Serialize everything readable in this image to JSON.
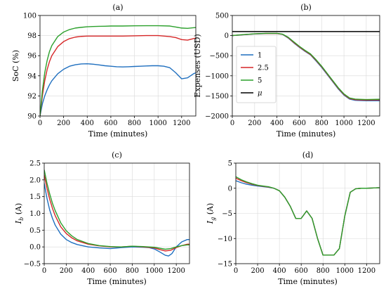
{
  "colors": {
    "s1": "#1f6fbf",
    "s2": "#d62728",
    "s3": "#2ca02c",
    "mu": "#000000",
    "grid": "#d9d9d9"
  },
  "chart_data": [
    {
      "id": "a",
      "type": "line",
      "title": "(a)",
      "xlabel": "Time (minutes)",
      "ylabel": "SoC (%)",
      "xlim": [
        0,
        1320
      ],
      "ylim": [
        90,
        100
      ],
      "xticks": [
        0,
        200,
        400,
        600,
        800,
        1000,
        1200
      ],
      "yticks": [
        90,
        92,
        94,
        96,
        98,
        100
      ],
      "grid": true,
      "series": [
        {
          "color": "s1",
          "x": [
            0,
            20,
            40,
            60,
            80,
            100,
            150,
            200,
            250,
            300,
            350,
            400,
            450,
            500,
            550,
            600,
            650,
            700,
            750,
            800,
            850,
            900,
            950,
            1000,
            1050,
            1100,
            1150,
            1200,
            1250,
            1300,
            1320
          ],
          "y": [
            90,
            91.2,
            92,
            92.6,
            93.1,
            93.5,
            94.2,
            94.65,
            94.95,
            95.1,
            95.18,
            95.2,
            95.15,
            95.08,
            95.0,
            94.95,
            94.9,
            94.88,
            94.9,
            94.93,
            94.95,
            94.98,
            95.0,
            95.0,
            94.95,
            94.8,
            94.3,
            93.7,
            93.8,
            94.2,
            94.3
          ]
        },
        {
          "color": "s2",
          "x": [
            0,
            20,
            40,
            60,
            80,
            100,
            150,
            200,
            250,
            300,
            350,
            400,
            450,
            500,
            550,
            600,
            700,
            800,
            900,
            1000,
            1050,
            1100,
            1150,
            1200,
            1250,
            1300,
            1320
          ],
          "y": [
            90,
            92,
            93.5,
            94.6,
            95.4,
            96.0,
            96.9,
            97.4,
            97.7,
            97.85,
            97.92,
            97.95,
            97.95,
            97.95,
            97.95,
            97.95,
            97.95,
            97.98,
            98.0,
            98.0,
            97.95,
            97.9,
            97.8,
            97.6,
            97.55,
            97.7,
            97.75
          ]
        },
        {
          "color": "s3",
          "x": [
            0,
            20,
            40,
            60,
            80,
            100,
            150,
            200,
            250,
            300,
            350,
            400,
            450,
            500,
            550,
            600,
            700,
            800,
            900,
            1000,
            1100,
            1150,
            1200,
            1250,
            1300,
            1320
          ],
          "y": [
            90,
            92.5,
            94.3,
            95.5,
            96.4,
            97.0,
            97.9,
            98.35,
            98.6,
            98.75,
            98.82,
            98.88,
            98.9,
            98.92,
            98.93,
            98.95,
            98.95,
            98.97,
            98.98,
            98.98,
            98.95,
            98.85,
            98.75,
            98.72,
            98.78,
            98.8
          ]
        }
      ]
    },
    {
      "id": "b",
      "type": "line",
      "title": "(b)",
      "xlabel": "Time (minutes)",
      "ylabel": "Expenses (USD)",
      "xlim": [
        0,
        1320
      ],
      "ylim": [
        -2000,
        500
      ],
      "xticks": [
        0,
        200,
        400,
        600,
        800,
        1000,
        1200
      ],
      "yticks": [
        500,
        0,
        -500,
        -1000,
        -1500,
        -2000
      ],
      "ytick_labels": [
        "500",
        "0",
        "−500",
        "−1000",
        "−1500",
        "−2000"
      ],
      "grid": true,
      "legend": {
        "position": "left-center",
        "entries": [
          "1",
          "2.5",
          "5",
          "μ"
        ]
      },
      "series": [
        {
          "name": "1",
          "color": "s1",
          "x": [
            0,
            50,
            100,
            200,
            300,
            400,
            450,
            500,
            550,
            600,
            650,
            700,
            750,
            800,
            850,
            900,
            950,
            1000,
            1050,
            1100,
            1200,
            1300,
            1320
          ],
          "y": [
            0,
            10,
            20,
            40,
            50,
            50,
            30,
            -60,
            -180,
            -290,
            -390,
            -480,
            -630,
            -790,
            -970,
            -1150,
            -1330,
            -1480,
            -1580,
            -1610,
            -1620,
            -1620,
            -1620
          ]
        },
        {
          "name": "2.5",
          "color": "s2",
          "x": [
            0,
            50,
            100,
            200,
            300,
            400,
            450,
            500,
            550,
            600,
            650,
            700,
            750,
            800,
            850,
            900,
            950,
            1000,
            1050,
            1100,
            1200,
            1300,
            1320
          ],
          "y": [
            0,
            12,
            22,
            42,
            52,
            52,
            32,
            -50,
            -170,
            -280,
            -380,
            -470,
            -615,
            -775,
            -955,
            -1135,
            -1315,
            -1465,
            -1565,
            -1595,
            -1605,
            -1600,
            -1600
          ]
        },
        {
          "name": "5",
          "color": "s3",
          "x": [
            0,
            50,
            100,
            200,
            300,
            400,
            450,
            500,
            550,
            600,
            650,
            700,
            750,
            800,
            850,
            900,
            950,
            1000,
            1050,
            1100,
            1200,
            1300,
            1320
          ],
          "y": [
            0,
            14,
            25,
            45,
            55,
            55,
            35,
            -40,
            -155,
            -265,
            -365,
            -455,
            -600,
            -760,
            -940,
            -1120,
            -1300,
            -1450,
            -1550,
            -1580,
            -1590,
            -1585,
            -1585
          ]
        },
        {
          "name": "μ",
          "color": "mu",
          "x": [
            0,
            1320
          ],
          "y": [
            100,
            100
          ]
        }
      ]
    },
    {
      "id": "c",
      "type": "line",
      "title": "(c)",
      "xlabel": "Time (minutes)",
      "ylabel": "I_b (A)",
      "ylabel_parts": [
        "I",
        "b",
        " (A)"
      ],
      "xlim": [
        0,
        1320
      ],
      "ylim": [
        -0.5,
        2.5
      ],
      "xticks": [
        0,
        200,
        400,
        600,
        800,
        1000,
        1200
      ],
      "yticks": [
        -0.5,
        0.0,
        0.5,
        1.0,
        1.5,
        2.0,
        2.5
      ],
      "ytick_labels": [
        "−0.5",
        "0.0",
        "0.5",
        "1.0",
        "1.5",
        "2.0",
        "2.5"
      ],
      "grid": true,
      "series": [
        {
          "color": "s1",
          "x": [
            0,
            25,
            50,
            75,
            100,
            150,
            200,
            250,
            300,
            400,
            500,
            600,
            700,
            800,
            900,
            950,
            1000,
            1050,
            1100,
            1130,
            1160,
            1200,
            1250,
            1300,
            1320
          ],
          "y": [
            1.9,
            1.45,
            1.1,
            0.85,
            0.65,
            0.38,
            0.22,
            0.13,
            0.07,
            0.0,
            -0.03,
            -0.05,
            -0.02,
            0.0,
            -0.01,
            -0.02,
            -0.06,
            -0.15,
            -0.25,
            -0.27,
            -0.2,
            0.0,
            0.15,
            0.22,
            0.22
          ]
        },
        {
          "color": "s2",
          "x": [
            0,
            25,
            50,
            75,
            100,
            150,
            200,
            250,
            300,
            400,
            500,
            600,
            700,
            800,
            900,
            1000,
            1050,
            1100,
            1150,
            1200,
            1250,
            1300,
            1320
          ],
          "y": [
            2.15,
            1.75,
            1.42,
            1.15,
            0.93,
            0.6,
            0.4,
            0.27,
            0.18,
            0.08,
            0.03,
            0.0,
            0.0,
            0.02,
            0.0,
            -0.03,
            -0.08,
            -0.12,
            -0.1,
            -0.02,
            0.04,
            0.08,
            0.08
          ]
        },
        {
          "color": "s3",
          "x": [
            0,
            25,
            50,
            75,
            100,
            150,
            200,
            250,
            300,
            400,
            500,
            600,
            700,
            800,
            900,
            1000,
            1050,
            1100,
            1150,
            1200,
            1250,
            1300,
            1320
          ],
          "y": [
            2.3,
            1.9,
            1.58,
            1.3,
            1.08,
            0.72,
            0.48,
            0.33,
            0.22,
            0.1,
            0.04,
            0.01,
            0.0,
            0.02,
            0.01,
            -0.01,
            -0.04,
            -0.07,
            -0.05,
            0.0,
            0.04,
            0.06,
            0.06
          ]
        }
      ]
    },
    {
      "id": "d",
      "type": "line",
      "title": "(d)",
      "xlabel": "Time (minutes)",
      "ylabel": "I_g (A)",
      "ylabel_parts": [
        "I",
        "g",
        " (A)"
      ],
      "xlim": [
        0,
        1320
      ],
      "ylim": [
        -15,
        5
      ],
      "xticks": [
        0,
        200,
        400,
        600,
        800,
        1000,
        1200
      ],
      "yticks": [
        5,
        0,
        -5,
        -10,
        -15
      ],
      "ytick_labels": [
        "5",
        "0",
        "−5",
        "−10",
        "−15"
      ],
      "grid": true,
      "series": [
        {
          "color": "s1",
          "x": [
            0,
            50,
            100,
            150,
            200,
            300,
            350,
            400,
            450,
            500,
            550,
            600,
            650,
            700,
            750,
            800,
            850,
            900,
            950,
            1000,
            1050,
            1100,
            1150,
            1200,
            1250,
            1300,
            1320
          ],
          "y": [
            1.5,
            1.1,
            0.8,
            0.6,
            0.45,
            0.2,
            0.0,
            -0.5,
            -1.8,
            -3.6,
            -6.0,
            -6.0,
            -4.5,
            -6.0,
            -10.0,
            -13.3,
            -13.3,
            -13.3,
            -12.0,
            -5.5,
            -0.8,
            -0.1,
            0.0,
            0.0,
            0.05,
            0.1,
            0.1
          ]
        },
        {
          "color": "s2",
          "x": [
            0,
            50,
            100,
            150,
            200,
            300,
            350,
            400,
            450,
            500,
            550,
            600,
            650,
            700,
            750,
            800,
            850,
            900,
            950,
            1000,
            1050,
            1100,
            1150,
            1200,
            1250,
            1300,
            1320
          ],
          "y": [
            2.0,
            1.5,
            1.1,
            0.8,
            0.55,
            0.25,
            0.0,
            -0.5,
            -1.8,
            -3.6,
            -6.0,
            -6.0,
            -4.5,
            -6.0,
            -10.0,
            -13.3,
            -13.3,
            -13.3,
            -12.0,
            -5.5,
            -0.8,
            -0.1,
            0.0,
            0.0,
            0.05,
            0.1,
            0.1
          ]
        },
        {
          "color": "s3",
          "x": [
            0,
            50,
            100,
            150,
            200,
            300,
            350,
            400,
            450,
            500,
            550,
            600,
            650,
            700,
            750,
            800,
            850,
            900,
            950,
            1000,
            1050,
            1100,
            1150,
            1200,
            1250,
            1300,
            1320
          ],
          "y": [
            2.3,
            1.7,
            1.25,
            0.9,
            0.6,
            0.3,
            0.0,
            -0.5,
            -1.8,
            -3.6,
            -6.0,
            -6.0,
            -4.5,
            -6.0,
            -10.0,
            -13.3,
            -13.3,
            -13.3,
            -12.0,
            -5.5,
            -0.8,
            -0.1,
            0.0,
            0.0,
            0.05,
            0.1,
            0.1
          ]
        }
      ]
    }
  ]
}
